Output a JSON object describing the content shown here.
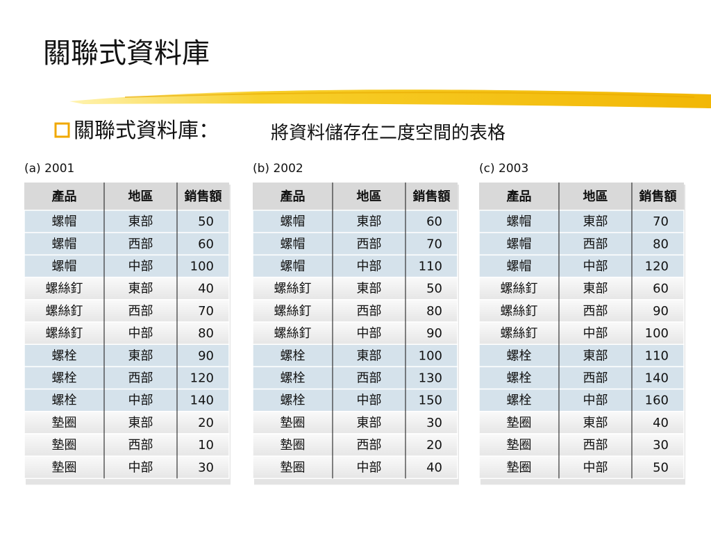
{
  "title": "關聯式資料庫",
  "bullet": {
    "heading": "關聯式資料庫：",
    "text": "將資料儲存在二度空間的表格"
  },
  "tables": [
    {
      "caption": "(a) 2001",
      "header": [
        "產品",
        "地區",
        "銷售額"
      ],
      "rows": [
        [
          "螺帽",
          "東部",
          50
        ],
        [
          "螺帽",
          "西部",
          60
        ],
        [
          "螺帽",
          "中部",
          100
        ],
        [
          "螺絲釘",
          "東部",
          40
        ],
        [
          "螺絲釘",
          "西部",
          70
        ],
        [
          "螺絲釘",
          "中部",
          80
        ],
        [
          "螺栓",
          "東部",
          90
        ],
        [
          "螺栓",
          "西部",
          120
        ],
        [
          "螺栓",
          "中部",
          140
        ],
        [
          "墊圈",
          "東部",
          20
        ],
        [
          "墊圈",
          "西部",
          10
        ],
        [
          "墊圈",
          "中部",
          30
        ]
      ]
    },
    {
      "caption": "(b) 2002",
      "header": [
        "產品",
        "地區",
        "銷售額"
      ],
      "rows": [
        [
          "螺帽",
          "東部",
          60
        ],
        [
          "螺帽",
          "西部",
          70
        ],
        [
          "螺帽",
          "中部",
          110
        ],
        [
          "螺絲釘",
          "東部",
          50
        ],
        [
          "螺絲釘",
          "西部",
          80
        ],
        [
          "螺絲釘",
          "中部",
          90
        ],
        [
          "螺栓",
          "東部",
          100
        ],
        [
          "螺栓",
          "西部",
          130
        ],
        [
          "螺栓",
          "中部",
          150
        ],
        [
          "墊圈",
          "東部",
          30
        ],
        [
          "墊圈",
          "西部",
          20
        ],
        [
          "墊圈",
          "中部",
          40
        ]
      ]
    },
    {
      "caption": "(c) 2003",
      "header": [
        "產品",
        "地區",
        "銷售額"
      ],
      "rows": [
        [
          "螺帽",
          "東部",
          70
        ],
        [
          "螺帽",
          "西部",
          80
        ],
        [
          "螺帽",
          "中部",
          120
        ],
        [
          "螺絲釘",
          "東部",
          60
        ],
        [
          "螺絲釘",
          "西部",
          90
        ],
        [
          "螺絲釘",
          "中部",
          100
        ],
        [
          "螺栓",
          "東部",
          110
        ],
        [
          "螺栓",
          "西部",
          140
        ],
        [
          "螺栓",
          "中部",
          160
        ],
        [
          "墊圈",
          "東部",
          40
        ],
        [
          "墊圈",
          "西部",
          30
        ],
        [
          "墊圈",
          "中部",
          50
        ]
      ]
    }
  ]
}
